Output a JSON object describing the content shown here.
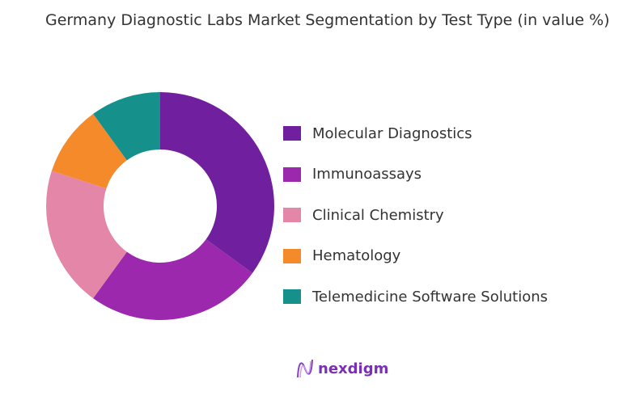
{
  "chart_data": {
    "type": "pie",
    "donut": true,
    "title": "Germany Diagnostic Labs Market Segmentation by Test Type (in value %)",
    "categories": [
      "Molecular Diagnostics",
      "Immunoassays",
      "Clinical Chemistry",
      "Hematology",
      "Telemedicine Software Solutions"
    ],
    "values": [
      35,
      25,
      20,
      10,
      10
    ],
    "colors": [
      "#701f9e",
      "#9b28ad",
      "#e486a8",
      "#f58a2a",
      "#15908b"
    ],
    "legend_position": "right"
  },
  "brand": {
    "name": "nexdigm"
  }
}
